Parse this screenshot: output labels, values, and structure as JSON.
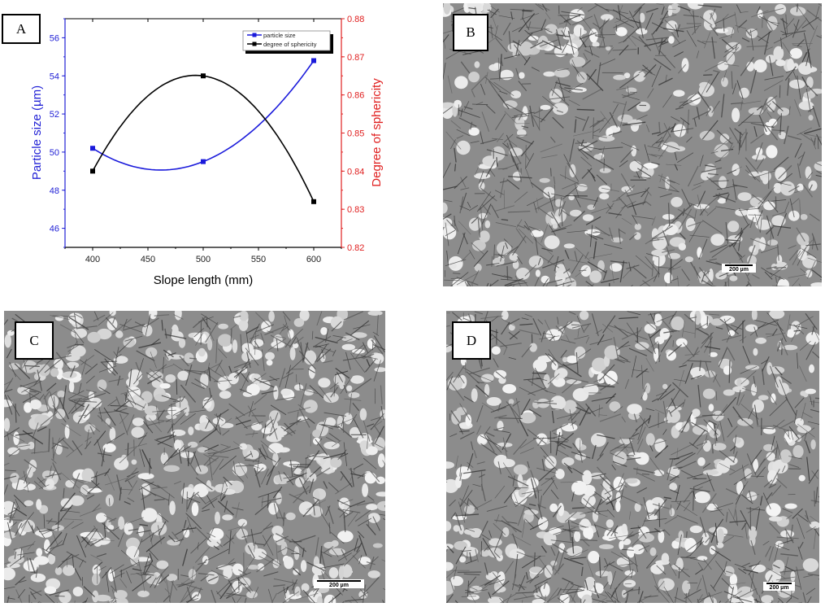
{
  "figure": {
    "panels": [
      {
        "id": "A",
        "label": "A",
        "kind": "chart"
      },
      {
        "id": "B",
        "label": "B",
        "kind": "micrograph",
        "scale_bar": "200 µm"
      },
      {
        "id": "C",
        "label": "C",
        "kind": "micrograph",
        "scale_bar": "200 µm"
      },
      {
        "id": "D",
        "label": "D",
        "kind": "micrograph",
        "scale_bar": "200 µm"
      }
    ]
  },
  "colors": {
    "particle_size": "#1a1adb",
    "sphericity": "#000000",
    "left_axis": "#2323d6",
    "right_axis": "#e02020"
  },
  "chart_data": {
    "type": "line",
    "title": "",
    "xlabel": "Slope length (mm)",
    "ylabel": "Particle size (µm)",
    "y2label": "Degree of sphericity",
    "x": [
      400,
      500,
      600
    ],
    "xlim": [
      375,
      625
    ],
    "xticks": [
      "400",
      "450",
      "500",
      "550",
      "600"
    ],
    "ylim": [
      45,
      57
    ],
    "yticks": [
      "46",
      "48",
      "50",
      "52",
      "54",
      "56"
    ],
    "y2lim": [
      0.82,
      0.88
    ],
    "y2ticks": [
      "0.82",
      "0.83",
      "0.84",
      "0.85",
      "0.86",
      "0.87",
      "0.88"
    ],
    "series": [
      {
        "name": "particle size",
        "axis": "left",
        "values": [
          50.2,
          49.5,
          54.8
        ],
        "marker": "square",
        "smooth": true
      },
      {
        "name": "degree of sphericity",
        "axis": "right",
        "values": [
          0.84,
          0.865,
          0.832
        ],
        "marker": "square",
        "smooth": true
      }
    ],
    "legend": {
      "position": "upper-right",
      "entries": [
        "particle size",
        "degree of sphericity"
      ]
    },
    "grid": false
  }
}
